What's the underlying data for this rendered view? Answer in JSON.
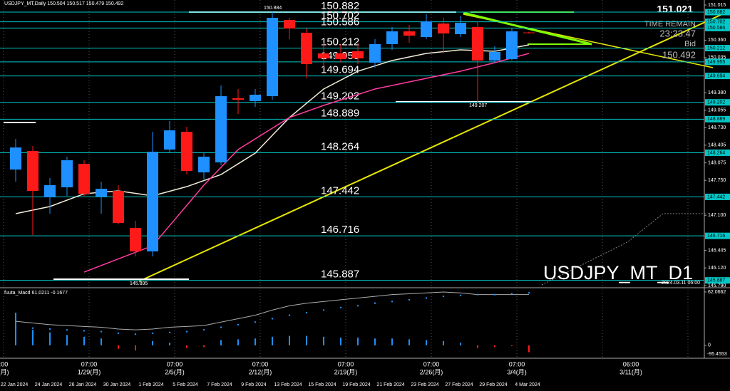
{
  "header": {
    "symbol_info": "USDJPY_MT,Daily  150.504 150.517 150.479 150.492",
    "watermark": "USDJPY_MT_D1",
    "price_big": "151.021",
    "time_remain_label": "TIME REMAIN",
    "time_remain": "23:23:47",
    "bid_label": "Bid",
    "bid": "150.492",
    "high_note": "150.884",
    "low_line_note": "149.207",
    "low_note": "145.895",
    "future_note": "2024.03.11 06:00"
  },
  "chart_data": {
    "type": "candlestick",
    "categories": [
      "22 Jan 2024",
      null,
      "24 Jan 2024",
      null,
      "26 Jan 2024",
      null,
      "30 Jan 2024",
      null,
      "1 Feb 2024",
      null,
      "5 Feb 2024",
      null,
      "7 Feb 2024",
      null,
      "9 Feb 2024",
      null,
      "13 Feb 2024",
      null,
      "15 Feb 2024",
      null,
      "19 Feb 2024",
      null,
      "21 Feb 2024",
      null,
      "23 Feb 2024",
      null,
      "27 Feb 2024",
      null,
      "29 Feb 2024",
      null,
      "4 Mar 2024"
    ],
    "open": [
      147.951,
      148.296,
      147.434,
      147.62,
      148.057,
      147.447,
      147.553,
      146.864,
      146.426,
      148.323,
      148.654,
      147.898,
      148.084,
      149.278,
      149.225,
      149.317,
      150.736,
      150.498,
      150.113,
      150.113,
      150.153,
      149.941,
      150.286,
      150.524,
      150.418,
      150.67,
      150.471,
      150.604,
      149.981,
      150.007,
      150.504
    ],
    "high": [
      148.522,
      148.389,
      147.792,
      148.19,
      148.124,
      147.726,
      147.66,
      146.996,
      148.654,
      148.853,
      148.747,
      148.256,
      149.516,
      149.45,
      149.45,
      150.884,
      150.776,
      150.577,
      150.312,
      150.286,
      150.312,
      150.378,
      150.604,
      150.644,
      150.843,
      150.776,
      150.816,
      150.71,
      150.246,
      150.577,
      150.517
    ],
    "low": [
      147.726,
      146.731,
      147.129,
      147.461,
      147.461,
      147.129,
      146.93,
      146.333,
      146.333,
      148.256,
      147.858,
      147.766,
      148.031,
      148.986,
      149.118,
      149.251,
      150.378,
      149.649,
      149.848,
      149.941,
      149.914,
      149.848,
      150.179,
      150.312,
      150.378,
      150.113,
      150.418,
      149.207,
      149.941,
      149.981,
      150.479
    ],
    "close": [
      148.362,
      147.553,
      147.66,
      148.124,
      147.5,
      147.593,
      146.957,
      146.426,
      148.283,
      148.681,
      147.925,
      148.19,
      149.317,
      149.251,
      149.344,
      150.776,
      150.577,
      149.914,
      150.02,
      150.007,
      150.02,
      150.286,
      150.524,
      150.445,
      150.71,
      150.485,
      150.683,
      149.981,
      150.14,
      150.524,
      150.492
    ],
    "up_color": "#1e90ff",
    "down_color": "#ff1a1a",
    "ylim": [
      145.79,
      151.015
    ],
    "yticks": [
      151.015,
      {
        "value": 150.36,
        "label": "150.360"
      },
      150.035,
      {
        "value": 149.38,
        "label": "149.380"
      },
      149.055,
      {
        "value": 148.73,
        "label": "148.730"
      },
      148.405,
      148.075,
      {
        "value": 147.75,
        "label": "147.750"
      },
      {
        "value": 147.1,
        "label": "147.100"
      },
      146.445,
      {
        "value": 146.12,
        "label": "146.120"
      },
      {
        "value": 145.79,
        "label": "145.790"
      }
    ],
    "levels": [
      150.882,
      150.702,
      150.586,
      150.212,
      149.955,
      149.694,
      149.202,
      148.889,
      148.264,
      147.442,
      146.716,
      145.887
    ],
    "level_color": "#00c8c8",
    "overlays": [
      {
        "color": "#f0ecd8",
        "x": [
          0,
          2,
          4,
          6,
          8,
          10,
          12,
          14,
          16,
          18,
          20,
          22,
          24,
          26,
          28,
          30
        ],
        "values": [
          147.129,
          147.262,
          147.5,
          147.553,
          147.461,
          147.633,
          147.858,
          148.256,
          148.919,
          149.45,
          149.782,
          149.981,
          150.113,
          150.179,
          150.153,
          150.272
        ]
      },
      {
        "color": "#ff3ca0",
        "x": [
          4,
          8,
          11,
          13,
          16,
          18,
          21,
          23,
          26,
          28,
          30
        ],
        "values": [
          146.041,
          146.532,
          147.66,
          148.323,
          148.919,
          149.145,
          149.45,
          149.583,
          149.782,
          149.941,
          150.113
        ]
      }
    ]
  },
  "macd": {
    "title": "fuuta_Macd 61.0211 -0.1677",
    "ylim": [
      -15,
      67
    ],
    "yticks": [
      62.0662,
      0
    ],
    "min_label": "-95.4553",
    "histogram": [
      38,
      18,
      15,
      12,
      10,
      8,
      -4,
      -6,
      5,
      3,
      -3,
      -2,
      6,
      7,
      8,
      10,
      11,
      11,
      10,
      9,
      9,
      8,
      8,
      7,
      6,
      5,
      3,
      -3,
      -2,
      -1,
      -8
    ],
    "main": [
      28,
      26,
      24,
      23,
      22,
      21,
      19,
      18,
      19,
      21,
      22,
      23,
      27,
      31,
      35,
      41,
      46,
      49,
      51,
      53,
      55,
      57,
      59,
      60,
      61,
      62,
      61,
      59,
      59,
      59,
      59
    ],
    "signal": [
      20,
      20,
      19,
      18,
      17,
      16,
      14,
      13,
      14,
      15,
      16,
      18,
      21,
      24,
      27,
      31,
      35,
      38,
      41,
      44,
      46,
      49,
      51,
      53,
      55,
      57,
      58,
      59,
      59,
      60,
      61
    ]
  },
  "time_axis": {
    "hours": [
      ":00",
      "07:00",
      "07:00",
      "07:00",
      "07:00",
      "07:00",
      "07:00",
      "06:00"
    ],
    "weeks": [
      "(月)",
      "1/29(月)",
      "2/5(月)",
      "2/12(月)",
      "2/19(月)",
      "2/26(月)",
      "3/4(月)",
      "3/11(月)"
    ]
  }
}
